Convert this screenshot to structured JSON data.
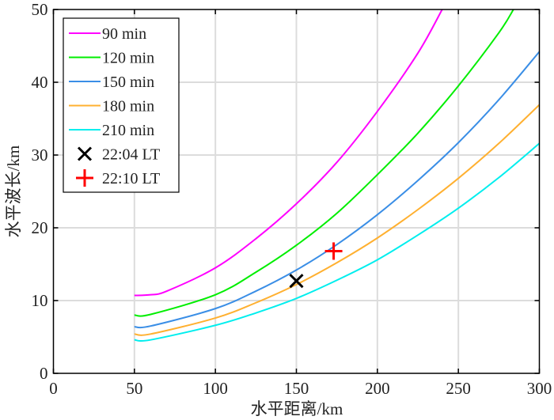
{
  "chart_data": {
    "type": "line",
    "title": "",
    "xlabel": "水平距离/km",
    "ylabel": "水平波长/km",
    "xlim": [
      0,
      300
    ],
    "ylim": [
      0,
      50
    ],
    "xticks": [
      0,
      50,
      100,
      150,
      200,
      250,
      300
    ],
    "yticks": [
      0,
      10,
      20,
      30,
      40,
      50
    ],
    "xtick_labels": [
      "0",
      "50",
      "100",
      "150",
      "200",
      "250",
      "300"
    ],
    "ytick_labels": [
      "0",
      "10",
      "20",
      "30",
      "40",
      "50"
    ],
    "grid": true,
    "legend_position": "top-left",
    "series": [
      {
        "name": " 90  min",
        "color": "#ff00ff",
        "x": [
          50,
          60,
          70,
          100,
          125,
          150,
          175,
          200,
          225,
          240
        ],
        "y": [
          10.7,
          10.8,
          11.3,
          14.5,
          18.5,
          23.3,
          29.0,
          36.0,
          44.0,
          50.0
        ]
      },
      {
        "name": "120 min",
        "color": "#00ee00",
        "x": [
          50,
          60,
          100,
          125,
          150,
          175,
          200,
          225,
          250,
          275,
          284
        ],
        "y": [
          8.0,
          8.1,
          10.8,
          13.9,
          17.6,
          22.0,
          27.3,
          33.0,
          39.5,
          46.8,
          50.0
        ]
      },
      {
        "name": "150 min",
        "color": "#3a8ee6",
        "x": [
          50,
          60,
          100,
          125,
          150,
          175,
          200,
          225,
          250,
          275,
          300
        ],
        "y": [
          6.4,
          6.5,
          8.9,
          11.3,
          14.2,
          17.7,
          21.8,
          26.5,
          31.7,
          37.6,
          44.2
        ]
      },
      {
        "name": "180 min",
        "color": "#ffb030",
        "x": [
          50,
          60,
          100,
          125,
          150,
          175,
          200,
          225,
          250,
          275,
          300
        ],
        "y": [
          5.4,
          5.4,
          7.6,
          9.7,
          12.2,
          15.2,
          18.6,
          22.5,
          26.8,
          31.6,
          36.9
        ]
      },
      {
        "name": "210 min",
        "color": "#00eeee",
        "x": [
          50,
          60,
          100,
          125,
          150,
          175,
          200,
          225,
          250,
          275,
          300
        ],
        "y": [
          4.6,
          4.6,
          6.6,
          8.3,
          10.3,
          12.8,
          15.6,
          19.0,
          22.7,
          26.9,
          31.6
        ]
      }
    ],
    "markers": [
      {
        "name": "22:04 LT",
        "symbol": "x",
        "color": "#000000",
        "x": 150,
        "y": 12.7
      },
      {
        "name": "22:10 LT",
        "symbol": "+",
        "color": "#ff0000",
        "x": 173,
        "y": 16.8
      }
    ]
  }
}
